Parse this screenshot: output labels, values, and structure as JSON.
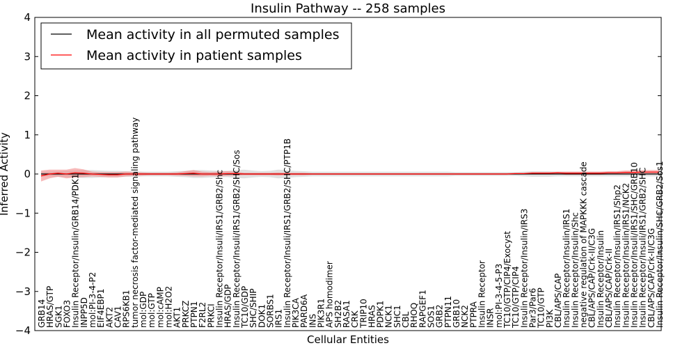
{
  "chart_data": {
    "type": "line",
    "title": "Insulin Pathway -- 258 samples",
    "xlabel": "Cellular Entities",
    "ylabel": "Inferred Activity",
    "ylim": [
      -4,
      4
    ],
    "yticks": [
      "4",
      "3",
      "2",
      "1",
      "0",
      "−1",
      "−2",
      "−3",
      "−4"
    ],
    "grid": false,
    "legend_position": "top-left",
    "series": [
      {
        "name": "Mean activity in all permuted samples",
        "color": "#000000",
        "band_color": "#c8c8c8"
      },
      {
        "name": "Mean activity in patient samples",
        "color": "#ff0000",
        "band_color": "#f08080"
      }
    ],
    "categories": [
      "GRB14",
      "HRAS/GTP",
      "SGK1",
      "FOXO3",
      "Insulin Receptor/Insulin/GRB14/PDK1",
      "INPP5D",
      "mol:PI-3-4-P2",
      "EIF4EBP1",
      "AKT2",
      "CAV1",
      "RPS6KB1",
      "tumor necrosis factor-mediated signaling pathway",
      "mol:GDP",
      "mol:GTP",
      "mol:cAMP",
      "mol:H2O2",
      "AKT1",
      "PRKCZ",
      "PTPN1",
      "F2RL2",
      "PRKCI",
      "Insulin Receptor/Insuli/IRS1/GRB2/Shc",
      "HRAS/GDP",
      "Insulin Receptor/Insuli/IRS1/GRB2/SHC/Sos",
      "TC10/GDP",
      "SHC/SHIP",
      "DOK1",
      "SORBS1",
      "IRS1",
      "Insulin Receptor/Insuli/IRS1/GRB2/SHC/PTP1B",
      "PIK3CA",
      "PARD6A",
      "INS",
      "PIK3R1",
      "APS homodimer",
      "SH2B2",
      "RASA1",
      "CRK",
      "TRIP10",
      "HRAS",
      "PDPK1",
      "NCK1",
      "SHC1",
      "CBL",
      "RHOQ",
      "RAPGEF1",
      "SOS1",
      "GRB2",
      "PTPN11",
      "GRB10",
      "NCK2",
      "PTPRA",
      "Insulin Receptor",
      "INSR",
      "mol:PI-3-4-5-P3",
      "TC10/GTP/CIP4/Exocyst",
      "TC10/GTP/CIP4",
      "Insulin Receptor/Insulin/IRS3",
      "Par3/Par6",
      "TC10/GTP",
      "PI3K",
      "CBL/APS/CAP",
      "Insulin Receptor/Insulin/IRS1",
      "Insulin Receptor/Insulin/Shc",
      "negative regulation of MAPKKK cascade",
      "CBL/APS/CAP/Crk-II/C3G",
      "Insulin Receptor/Insulin",
      "CBL/APS/CAP/Crk-II",
      "Insulin Receptor/Insulin/IRS1/Shp2",
      "Insulin Receptor/Insulin/IRS1/NCK2",
      "Insulin Receptor/Insuli/IRS1/SHC/GRB10",
      "Insulin Receptor/Insuli/IRS1/GRB2/SHC",
      "CBL/APS/CAP/Crk-II/C3G",
      "Insulin Receptor/Insulin/SHC/GRB2/Sos1"
    ],
    "permuted_mean": [
      0,
      0,
      0,
      0,
      0,
      0,
      0,
      0,
      0,
      0,
      0,
      0,
      0,
      0,
      0,
      0,
      0,
      0,
      0,
      0,
      0,
      0,
      0,
      0,
      0,
      0,
      0,
      0,
      0,
      0,
      0,
      0,
      0,
      0,
      0,
      0,
      0,
      0,
      0,
      0,
      0,
      0,
      0,
      0,
      0,
      0,
      0,
      0,
      0,
      0,
      0,
      0,
      0,
      0,
      0,
      0,
      0,
      0,
      0,
      0,
      0,
      0,
      0,
      0,
      0,
      0,
      0,
      0,
      0,
      0,
      0,
      0,
      0,
      0
    ],
    "permuted_spread": [
      0.06,
      0.06,
      0.07,
      0.08,
      0.09,
      0.1,
      0.1,
      0.09,
      0.08,
      0.08,
      0.07,
      0.07,
      0.06,
      0.06,
      0.06,
      0.06,
      0.07,
      0.08,
      0.1,
      0.1,
      0.09,
      0.08,
      0.08,
      0.1,
      0.11,
      0.09,
      0.07,
      0.08,
      0.11,
      0.1,
      0.08,
      0.07,
      0.06,
      0.06,
      0.06,
      0.06,
      0.06,
      0.06,
      0.06,
      0.06,
      0.06,
      0.06,
      0.06,
      0.06,
      0.06,
      0.06,
      0.06,
      0.06,
      0.06,
      0.05,
      0.05,
      0.05,
      0.05,
      0.05,
      0.05,
      0.05,
      0.05,
      0.06,
      0.07,
      0.07,
      0.07,
      0.06,
      0.06,
      0.06,
      0.06,
      0.06,
      0.06,
      0.06,
      0.06,
      0.06,
      0.06,
      0.06,
      0.06,
      0.06
    ],
    "patient_mean": [
      -0.05,
      0.0,
      0.02,
      0.0,
      0.03,
      0.02,
      0.0,
      -0.01,
      -0.02,
      -0.02,
      0.0,
      0.0,
      0.0,
      0.0,
      0.0,
      0.0,
      0.0,
      0.01,
      0.02,
      0.0,
      0.0,
      0.0,
      0.01,
      0.01,
      0.0,
      0.0,
      0.0,
      0.0,
      0.0,
      0.0,
      0.0,
      0.0,
      0.0,
      0.0,
      0.0,
      0.0,
      0.0,
      0.0,
      0.0,
      0.0,
      0.0,
      0.0,
      0.0,
      0.0,
      0.0,
      0.0,
      0.0,
      0.0,
      0.0,
      0.0,
      0.0,
      0.0,
      0.0,
      0.0,
      0.0,
      0.0,
      0.01,
      0.01,
      0.02,
      0.02,
      0.02,
      0.03,
      0.02,
      0.02,
      0.02,
      0.02,
      0.02,
      0.03,
      0.03,
      0.04,
      0.04,
      0.05,
      0.05,
      0.05
    ],
    "patient_spread": [
      0.14,
      0.11,
      0.09,
      0.11,
      0.12,
      0.1,
      0.06,
      0.06,
      0.07,
      0.07,
      0.06,
      0.05,
      0.04,
      0.03,
      0.03,
      0.03,
      0.04,
      0.06,
      0.08,
      0.06,
      0.05,
      0.06,
      0.06,
      0.05,
      0.03,
      0.03,
      0.03,
      0.03,
      0.04,
      0.03,
      0.03,
      0.03,
      0.02,
      0.02,
      0.02,
      0.02,
      0.02,
      0.02,
      0.02,
      0.02,
      0.02,
      0.02,
      0.02,
      0.02,
      0.02,
      0.02,
      0.02,
      0.02,
      0.02,
      0.02,
      0.02,
      0.02,
      0.02,
      0.02,
      0.02,
      0.02,
      0.02,
      0.02,
      0.03,
      0.03,
      0.03,
      0.03,
      0.04,
      0.04,
      0.04,
      0.04,
      0.04,
      0.04,
      0.04,
      0.05,
      0.05,
      0.05,
      0.05,
      0.05
    ]
  }
}
